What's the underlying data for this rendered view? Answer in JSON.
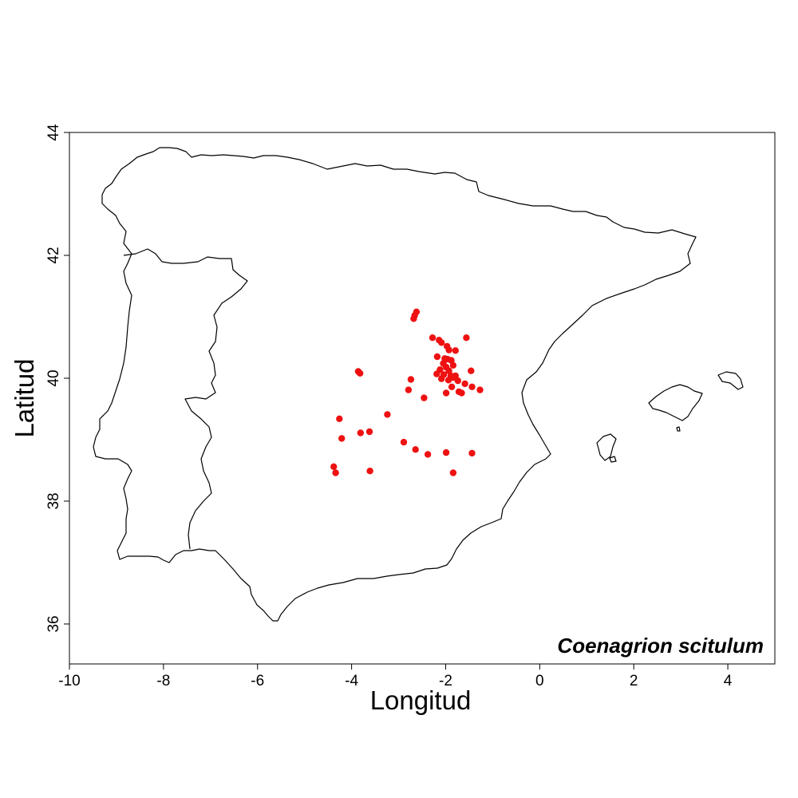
{
  "chart_data": {
    "type": "scatter",
    "title": "",
    "species_label": "Coenagrion scitulum",
    "xlabel": "Longitud",
    "ylabel": "Latitud",
    "xlim": [
      -10,
      5
    ],
    "ylim": [
      35.35,
      44
    ],
    "x_ticks": [
      "-10",
      "-8",
      "-6",
      "-4",
      "-2",
      "0",
      "2",
      "4"
    ],
    "y_ticks": [
      "36",
      "38",
      "40",
      "42",
      "44"
    ],
    "grid": false,
    "legend": "none",
    "point_color": "#ee1111",
    "outline_color": "#000000",
    "basemap": "Iberian Peninsula and Balearic Islands coastline outline",
    "points": [
      {
        "x": -2.62,
        "y": 41.08
      },
      {
        "x": -2.66,
        "y": 41.02
      },
      {
        "x": -2.68,
        "y": 40.97
      },
      {
        "x": -2.28,
        "y": 40.66
      },
      {
        "x": -2.14,
        "y": 40.62
      },
      {
        "x": -2.09,
        "y": 40.58
      },
      {
        "x": -1.56,
        "y": 40.66
      },
      {
        "x": -1.97,
        "y": 40.52
      },
      {
        "x": -1.93,
        "y": 40.46
      },
      {
        "x": -1.79,
        "y": 40.45
      },
      {
        "x": -2.18,
        "y": 40.35
      },
      {
        "x": -2.02,
        "y": 40.32
      },
      {
        "x": -1.96,
        "y": 40.31
      },
      {
        "x": -1.88,
        "y": 40.29
      },
      {
        "x": -2.05,
        "y": 40.24
      },
      {
        "x": -1.99,
        "y": 40.18
      },
      {
        "x": -1.84,
        "y": 40.21
      },
      {
        "x": -2.12,
        "y": 40.14
      },
      {
        "x": -1.93,
        "y": 40.12
      },
      {
        "x": -1.46,
        "y": 40.12
      },
      {
        "x": -2.19,
        "y": 40.07
      },
      {
        "x": -2.04,
        "y": 40.06
      },
      {
        "x": -1.89,
        "y": 40.04
      },
      {
        "x": -1.79,
        "y": 40.04
      },
      {
        "x": -1.84,
        "y": 40.01
      },
      {
        "x": -2.09,
        "y": 39.99
      },
      {
        "x": -1.94,
        "y": 39.97
      },
      {
        "x": -1.74,
        "y": 39.96
      },
      {
        "x": -2.74,
        "y": 39.98
      },
      {
        "x": -1.59,
        "y": 39.91
      },
      {
        "x": -1.87,
        "y": 39.86
      },
      {
        "x": -1.44,
        "y": 39.86
      },
      {
        "x": -1.27,
        "y": 39.81
      },
      {
        "x": -1.72,
        "y": 39.78
      },
      {
        "x": -1.66,
        "y": 39.76
      },
      {
        "x": -1.99,
        "y": 39.76
      },
      {
        "x": -2.79,
        "y": 39.81
      },
      {
        "x": -2.46,
        "y": 39.68
      },
      {
        "x": -3.86,
        "y": 40.11
      },
      {
        "x": -3.82,
        "y": 40.08
      },
      {
        "x": -3.24,
        "y": 39.41
      },
      {
        "x": -4.26,
        "y": 39.34
      },
      {
        "x": -3.81,
        "y": 39.11
      },
      {
        "x": -3.62,
        "y": 39.13
      },
      {
        "x": -4.21,
        "y": 39.02
      },
      {
        "x": -2.89,
        "y": 38.96
      },
      {
        "x": -2.64,
        "y": 38.84
      },
      {
        "x": -2.38,
        "y": 38.76
      },
      {
        "x": -1.99,
        "y": 38.79
      },
      {
        "x": -1.44,
        "y": 38.78
      },
      {
        "x": -4.38,
        "y": 38.56
      },
      {
        "x": -4.34,
        "y": 38.46
      },
      {
        "x": -3.61,
        "y": 38.49
      },
      {
        "x": -1.84,
        "y": 38.46
      }
    ]
  }
}
